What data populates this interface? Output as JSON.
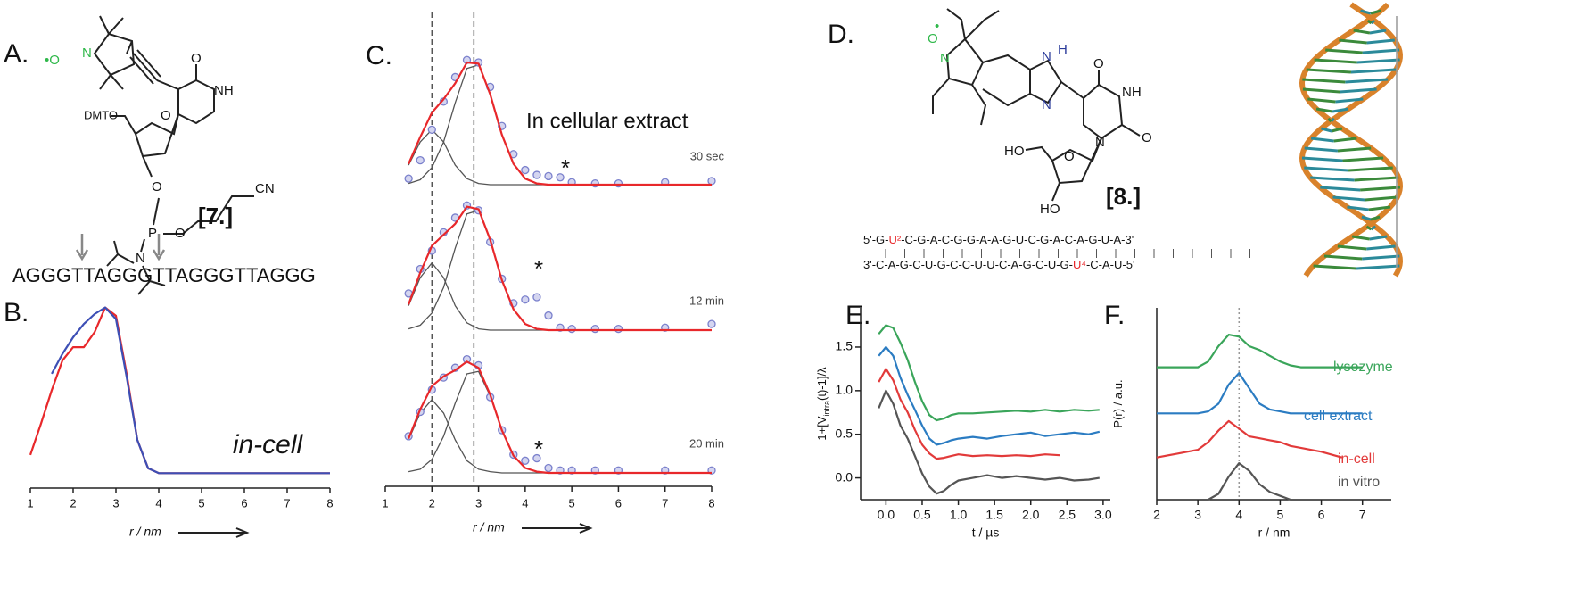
{
  "panels": {
    "A": {
      "letter": "A.",
      "compound": "[7.]",
      "sequence": "AGGGTTAGGGTTAGGGTTAGGG",
      "atoms": [
        "•O",
        "N",
        "O",
        "NH",
        "DMTO",
        "O",
        "O",
        "P",
        "O",
        "N",
        "CN"
      ]
    },
    "B": {
      "letter": "B."
    },
    "C": {
      "letter": "C."
    },
    "D": {
      "letter": "D.",
      "compound": "[8.]",
      "atoms": [
        "O",
        "•",
        "N",
        "N",
        "H",
        "N",
        "O",
        "NH",
        "N",
        "O",
        "HO",
        "O",
        "HO"
      ],
      "strand_top": [
        "5'-G-",
        "U²",
        "-C-G-A-C-G-G-A-A-G-U-C-G-A-C-A-G-U-A-3'"
      ],
      "strand_bottom": [
        "3'-C-A-G-C-U-G-C-C-U-U-C-A-G-C-U-G-",
        "U⁴",
        "-C-A-U-5'"
      ]
    },
    "E": {
      "letter": "E."
    },
    "F": {
      "letter": "F."
    }
  },
  "chart_data": [
    {
      "type": "line",
      "annotation": "in-cell",
      "xlabel": "r / nm",
      "x": [
        1,
        1.25,
        1.5,
        1.75,
        2,
        2.25,
        2.5,
        2.75,
        3,
        3.25,
        3.5,
        3.75,
        4,
        4.5,
        5,
        6,
        7,
        8
      ],
      "series": [
        {
          "color": "#e8282b",
          "values": [
            0.11,
            0.3,
            0.5,
            0.68,
            0.76,
            0.76,
            0.85,
            1.0,
            0.95,
            0.6,
            0.2,
            0.03,
            0,
            0,
            0,
            0,
            0,
            0
          ]
        },
        {
          "color": "#3d4fb5",
          "values": [
            null,
            null,
            0.6,
            0.72,
            0.82,
            0.9,
            0.96,
            1.0,
            0.93,
            0.58,
            0.2,
            0.03,
            0,
            0,
            0,
            0,
            0,
            0
          ]
        }
      ],
      "xlim": [
        1,
        8
      ],
      "ylim": [
        -0.09,
        1.1
      ],
      "xticks": [
        1,
        2,
        3,
        4,
        5,
        6,
        7,
        8
      ]
    },
    {
      "type": "fit",
      "annotation": "In cellular extract",
      "xlabel": "r / nm",
      "x": [
        1.5,
        1.75,
        2,
        2.25,
        2.5,
        2.75,
        3,
        3.25,
        3.5,
        3.75,
        4,
        4.25,
        4.5,
        4.75,
        5,
        5.5,
        6,
        7,
        8
      ],
      "data_color": "#7a80cc",
      "fit_color": "#e8282b",
      "component_color": "#555555",
      "vlines": [
        2,
        2.9
      ],
      "subplots": [
        {
          "label": "30 sec",
          "marker": "*",
          "data": [
            0.05,
            0.2,
            0.45,
            0.68,
            0.88,
            1.02,
            1.0,
            0.8,
            0.48,
            0.25,
            0.12,
            0.08,
            0.07,
            0.06,
            0.02,
            0.01,
            0.01,
            0.02,
            0.03
          ],
          "fit": [
            0.17,
            0.39,
            0.59,
            0.7,
            0.83,
            1.0,
            0.99,
            0.74,
            0.41,
            0.17,
            0.05,
            0.01,
            0,
            0,
            0,
            0,
            0,
            0,
            0
          ],
          "components": [
            [
              0.16,
              0.35,
              0.45,
              0.35,
              0.16,
              0.05,
              0.01,
              0,
              0,
              0,
              0,
              0,
              0,
              0,
              0,
              0,
              0,
              0,
              0
            ],
            [
              0.01,
              0.04,
              0.14,
              0.35,
              0.67,
              0.95,
              0.98,
              0.74,
              0.41,
              0.17,
              0.05,
              0.01,
              0,
              0,
              0,
              0,
              0,
              0,
              0
            ]
          ]
        },
        {
          "label": "12 min",
          "marker": "*",
          "data": [
            0.3,
            0.5,
            0.65,
            0.8,
            0.92,
            1.02,
            0.98,
            0.72,
            0.42,
            0.22,
            0.25,
            0.27,
            0.12,
            0.02,
            0.01,
            0.01,
            0.01,
            0.02,
            0.05
          ],
          "fit": [
            0.21,
            0.47,
            0.69,
            0.78,
            0.87,
            1.01,
            0.99,
            0.74,
            0.41,
            0.17,
            0.05,
            0.01,
            0,
            0,
            0,
            0,
            0,
            0,
            0
          ],
          "components": [
            [
              0.2,
              0.43,
              0.55,
              0.43,
              0.2,
              0.06,
              0.01,
              0,
              0,
              0,
              0,
              0,
              0,
              0,
              0,
              0,
              0,
              0,
              0
            ],
            [
              0.01,
              0.04,
              0.14,
              0.35,
              0.67,
              0.95,
              0.98,
              0.74,
              0.41,
              0.17,
              0.05,
              0.01,
              0,
              0,
              0,
              0,
              0,
              0,
              0
            ]
          ]
        },
        {
          "label": "20 min",
          "marker": "*",
          "data": [
            0.3,
            0.5,
            0.68,
            0.78,
            0.86,
            0.93,
            0.88,
            0.62,
            0.35,
            0.15,
            0.1,
            0.12,
            0.04,
            0.02,
            0.02,
            0.02,
            0.02,
            0.02,
            0.02
          ],
          "fit": [
            0.28,
            0.52,
            0.71,
            0.79,
            0.84,
            0.91,
            0.86,
            0.64,
            0.35,
            0.14,
            0.04,
            0.01,
            0,
            0,
            0,
            0,
            0,
            0,
            0
          ],
          "components": [
            [
              0.27,
              0.49,
              0.6,
              0.49,
              0.27,
              0.1,
              0.03,
              0.01,
              0,
              0,
              0,
              0,
              0,
              0,
              0,
              0,
              0,
              0,
              0
            ],
            [
              0.01,
              0.03,
              0.11,
              0.3,
              0.57,
              0.81,
              0.83,
              0.63,
              0.35,
              0.14,
              0.04,
              0.01,
              0,
              0,
              0,
              0,
              0,
              0,
              0
            ]
          ]
        }
      ],
      "xlim": [
        1,
        8
      ],
      "ylim": [
        0,
        1
      ],
      "xticks": [
        1,
        2,
        3,
        4,
        5,
        6,
        7,
        8
      ]
    },
    {
      "type": "line",
      "ylabel": [
        "1+[V",
        "intra",
        "(t)-1]/λ"
      ],
      "xlabel": "t / µs",
      "x": [
        -0.1,
        0,
        0.1,
        0.2,
        0.3,
        0.4,
        0.5,
        0.6,
        0.7,
        0.8,
        0.9,
        1.0,
        1.2,
        1.4,
        1.6,
        1.8,
        2.0,
        2.2,
        2.4,
        2.6,
        2.8,
        2.95
      ],
      "series": [
        {
          "color": "#3aa55a",
          "values": [
            1.65,
            1.75,
            1.72,
            1.55,
            1.35,
            1.1,
            0.88,
            0.72,
            0.66,
            0.68,
            0.72,
            0.74,
            0.74,
            0.75,
            0.76,
            0.77,
            0.76,
            0.78,
            0.76,
            0.78,
            0.77,
            0.78
          ]
        },
        {
          "color": "#2b7cc2",
          "values": [
            1.4,
            1.5,
            1.4,
            1.15,
            0.95,
            0.78,
            0.6,
            0.45,
            0.38,
            0.4,
            0.43,
            0.45,
            0.47,
            0.45,
            0.48,
            0.5,
            0.52,
            0.48,
            0.5,
            0.52,
            0.5,
            0.53
          ]
        },
        {
          "color": "#e23a3a",
          "values": [
            1.1,
            1.25,
            1.12,
            0.9,
            0.75,
            0.55,
            0.38,
            0.28,
            0.22,
            0.23,
            0.25,
            0.27,
            0.25,
            0.26,
            0.25,
            0.26,
            0.25,
            0.27,
            0.26,
            null,
            null,
            null
          ]
        },
        {
          "color": "#555555",
          "values": [
            0.8,
            1.0,
            0.85,
            0.6,
            0.45,
            0.25,
            0.05,
            -0.1,
            -0.18,
            -0.15,
            -0.08,
            -0.03,
            0,
            0.03,
            0,
            0.02,
            0,
            -0.02,
            0,
            -0.03,
            -0.02,
            0
          ]
        }
      ],
      "xlim": [
        -0.35,
        3.1
      ],
      "ylim": [
        -0.25,
        1.95
      ],
      "xticks": [
        {
          "value": 0,
          "label": "0.0"
        },
        {
          "value": 0.5,
          "label": "0.5"
        },
        {
          "value": 1,
          "label": "1.0"
        },
        {
          "value": 1.5,
          "label": "1.5"
        },
        {
          "value": 2,
          "label": "2.0"
        },
        {
          "value": 2.5,
          "label": "2.5"
        },
        {
          "value": 3,
          "label": "3.0"
        }
      ],
      "yticks": [
        {
          "value": 0,
          "label": "0.0"
        },
        {
          "value": 0.5,
          "label": "0.5"
        },
        {
          "value": 1,
          "label": "1.0"
        },
        {
          "value": 1.5,
          "label": "1.5"
        }
      ]
    },
    {
      "type": "line",
      "ylabel": [
        "P(r) / a.u."
      ],
      "xlabel": "r / nm",
      "vline": 4,
      "x": [
        2,
        2.5,
        3,
        3.25,
        3.5,
        3.75,
        4,
        4.25,
        4.5,
        4.75,
        5,
        5.25,
        5.5,
        6,
        6.5,
        7
      ],
      "series": [
        {
          "name": "lysozyme",
          "color": "#3aa55a",
          "values": [
            0.69,
            0.69,
            0.69,
            0.72,
            0.8,
            0.86,
            0.85,
            0.8,
            0.78,
            0.75,
            0.72,
            0.7,
            0.69,
            0.69,
            0.69,
            0.69
          ]
        },
        {
          "name": "cell extract",
          "color": "#2b7cc2",
          "values": [
            0.45,
            0.45,
            0.45,
            0.46,
            0.5,
            0.6,
            0.66,
            0.58,
            0.5,
            0.47,
            0.46,
            0.45,
            0.45,
            0.45,
            0.45,
            0.45
          ]
        },
        {
          "name": "in-cell",
          "color": "#e23a3a",
          "values": [
            0.22,
            0.24,
            0.26,
            0.3,
            0.36,
            0.41,
            0.37,
            0.33,
            0.32,
            0.31,
            0.3,
            0.28,
            0.27,
            0.25,
            0.22,
            null
          ]
        },
        {
          "name": "in vitro",
          "color": "#555555",
          "values": [
            null,
            null,
            null,
            0,
            0.03,
            0.12,
            0.19,
            0.15,
            0.08,
            0.04,
            0.02,
            0,
            null,
            null,
            null,
            null
          ]
        }
      ],
      "xlim": [
        2,
        7.7
      ],
      "ylim": [
        0,
        1
      ],
      "xticks": [
        2,
        3,
        4,
        5,
        6,
        7
      ]
    }
  ]
}
